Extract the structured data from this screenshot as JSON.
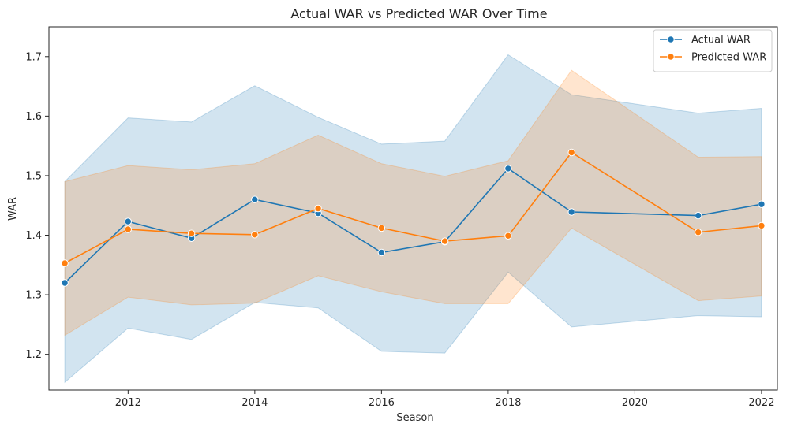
{
  "chart_data": {
    "type": "line",
    "title": "Actual WAR vs Predicted WAR Over Time",
    "xlabel": "Season",
    "ylabel": "WAR",
    "xlim": [
      2010.75,
      2022.25
    ],
    "ylim": [
      1.14,
      1.75
    ],
    "x_ticks": [
      2012,
      2014,
      2016,
      2018,
      2020,
      2022
    ],
    "y_ticks": [
      1.2,
      1.3,
      1.4,
      1.5,
      1.6,
      1.7
    ],
    "x_tick_labels": [
      "2012",
      "2014",
      "2016",
      "2018",
      "2020",
      "2022"
    ],
    "y_tick_labels": [
      "1.2",
      "1.3",
      "1.4",
      "1.5",
      "1.6",
      "1.7"
    ],
    "grid": false,
    "legend_position": "top-right",
    "x": [
      2011,
      2012,
      2013,
      2014,
      2015,
      2016,
      2017,
      2018,
      2019,
      2021,
      2022
    ],
    "series": [
      {
        "name": "Actual WAR",
        "color": "#1f77b4",
        "values": [
          1.32,
          1.423,
          1.395,
          1.46,
          1.437,
          1.371,
          1.389,
          1.512,
          1.439,
          1.433,
          1.452
        ],
        "ci_upper": [
          1.49,
          1.597,
          1.59,
          1.651,
          1.598,
          1.553,
          1.558,
          1.703,
          1.636,
          1.605,
          1.613
        ],
        "ci_lower": [
          1.153,
          1.244,
          1.225,
          1.287,
          1.278,
          1.205,
          1.202,
          1.338,
          1.246,
          1.265,
          1.263
        ]
      },
      {
        "name": "Predicted WAR",
        "color": "#ff7f0e",
        "values": [
          1.353,
          1.41,
          1.403,
          1.401,
          1.445,
          1.412,
          1.39,
          1.399,
          1.539,
          1.405,
          1.416
        ],
        "ci_upper": [
          1.49,
          1.517,
          1.51,
          1.52,
          1.568,
          1.52,
          1.499,
          1.525,
          1.677,
          1.531,
          1.532
        ],
        "ci_lower": [
          1.232,
          1.296,
          1.283,
          1.286,
          1.332,
          1.305,
          1.285,
          1.285,
          1.412,
          1.29,
          1.298
        ]
      }
    ]
  }
}
